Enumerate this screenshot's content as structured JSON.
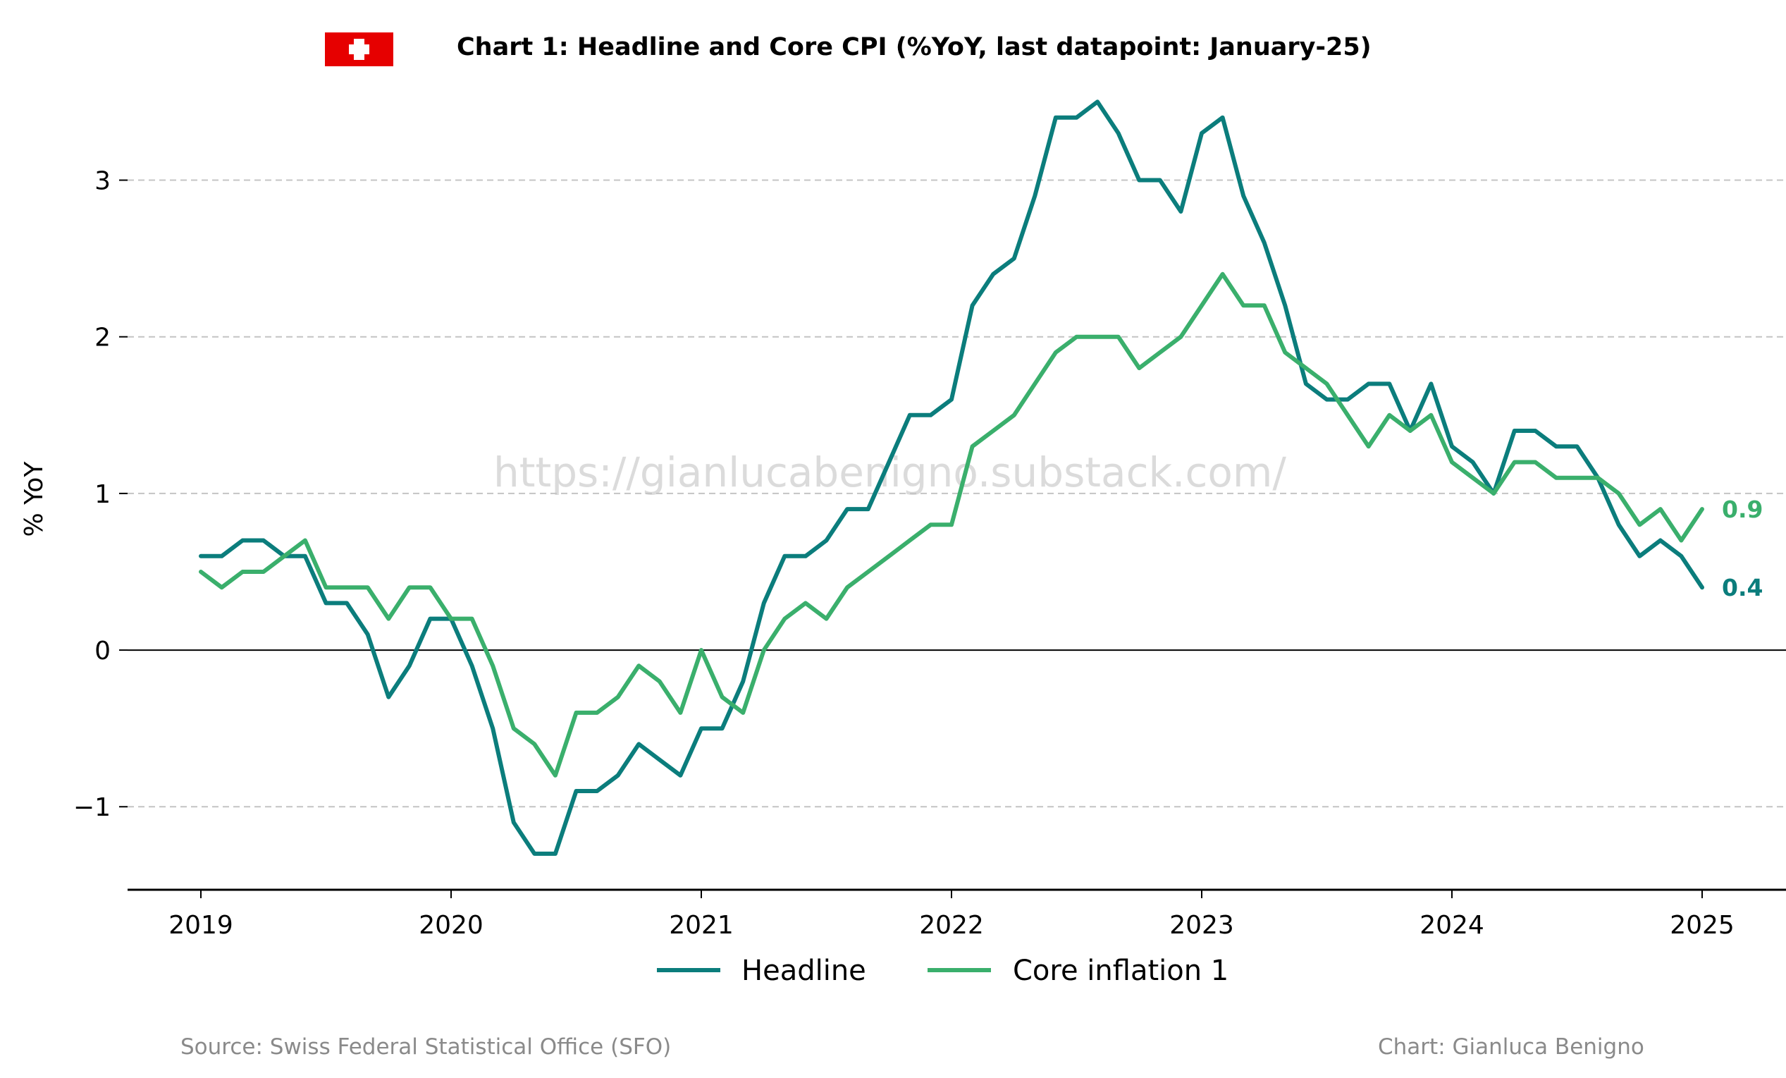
{
  "chart_data": {
    "type": "line",
    "title": "Chart 1: Headline and Core CPI (%YoY, last datapoint: January-25)",
    "ylabel": "% YoY",
    "xlabel": "",
    "ylim": [
      -1.53,
      3.52
    ],
    "y_ticks": [
      -1,
      0,
      1,
      2,
      3
    ],
    "y_tick_labels": [
      "−1",
      "0",
      "1",
      "2",
      "3"
    ],
    "x_ticks": [
      "2019",
      "2020",
      "2021",
      "2022",
      "2023",
      "2024",
      "2025"
    ],
    "x_start": "2019-01",
    "x_end": "2025-01",
    "grid": "horizontal dashed",
    "zero_line": true,
    "legend_position": "bottom-center",
    "series": [
      {
        "name": "Headline",
        "color": "#0b7d7c",
        "end_label": "0.4",
        "values": [
          0.6,
          0.6,
          0.7,
          0.7,
          0.6,
          0.6,
          0.3,
          0.3,
          0.1,
          -0.3,
          -0.1,
          0.2,
          0.2,
          -0.1,
          -0.5,
          -1.1,
          -1.3,
          -1.3,
          -0.9,
          -0.9,
          -0.8,
          -0.6,
          -0.7,
          -0.8,
          -0.5,
          -0.5,
          -0.2,
          0.3,
          0.6,
          0.6,
          0.7,
          0.9,
          0.9,
          1.2,
          1.5,
          1.5,
          1.6,
          2.2,
          2.4,
          2.5,
          2.9,
          3.4,
          3.4,
          3.5,
          3.3,
          3.0,
          3.0,
          2.8,
          3.3,
          3.4,
          2.9,
          2.6,
          2.2,
          1.7,
          1.6,
          1.6,
          1.7,
          1.7,
          1.4,
          1.7,
          1.3,
          1.2,
          1.0,
          1.4,
          1.4,
          1.3,
          1.3,
          1.1,
          0.8,
          0.6,
          0.7,
          0.6,
          0.4
        ]
      },
      {
        "name": "Core inflation 1",
        "color": "#3aaf6c",
        "end_label": "0.9",
        "values": [
          0.5,
          0.4,
          0.5,
          0.5,
          0.6,
          0.7,
          0.4,
          0.4,
          0.4,
          0.2,
          0.4,
          0.4,
          0.2,
          0.2,
          -0.1,
          -0.5,
          -0.6,
          -0.8,
          -0.4,
          -0.4,
          -0.3,
          -0.1,
          -0.2,
          -0.4,
          0.0,
          -0.3,
          -0.4,
          0.0,
          0.2,
          0.3,
          0.2,
          0.4,
          0.5,
          0.6,
          0.7,
          0.8,
          0.8,
          1.3,
          1.4,
          1.5,
          1.7,
          1.9,
          2.0,
          2.0,
          2.0,
          1.8,
          1.9,
          2.0,
          2.2,
          2.4,
          2.2,
          2.2,
          1.9,
          1.8,
          1.7,
          1.5,
          1.3,
          1.5,
          1.4,
          1.5,
          1.2,
          1.1,
          1.0,
          1.2,
          1.2,
          1.1,
          1.1,
          1.1,
          1.0,
          0.8,
          0.9,
          0.7,
          0.9
        ]
      }
    ]
  },
  "footer": {
    "source": "Source: Swiss Federal Statistical Office (SFO)",
    "credit": "Chart: Gianluca Benigno"
  },
  "watermark": "https://gianlucabenigno.substack.com/",
  "flag": {
    "country": "Switzerland",
    "color": "#e60000",
    "cross_color": "#ffffff"
  },
  "colors": {
    "grid": "#c4c4c4",
    "axis": "#000000",
    "zero_line": "#000000"
  }
}
